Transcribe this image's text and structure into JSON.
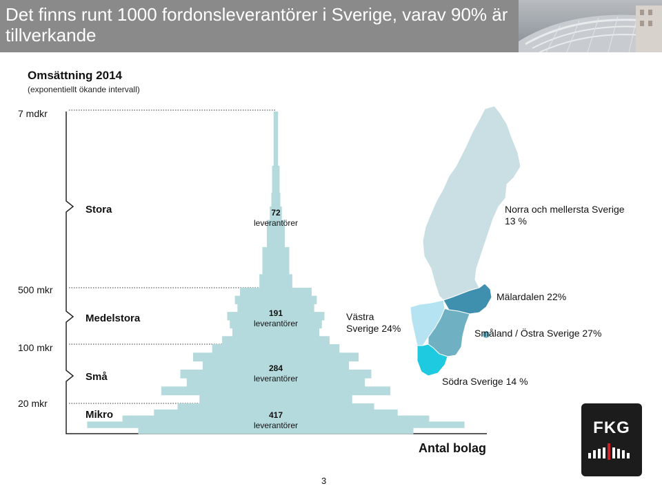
{
  "header": {
    "title": "Det finns runt 1000 fordonsleverantörer i Sverige, varav 90% är tillverkande",
    "bg_color": "#8a8a8a"
  },
  "chart_data": {
    "type": "bar",
    "title": "Omsättning 2014",
    "subtitle": "(exponentiellt ökande intervall)",
    "xlabel": "Antal bolag",
    "y_ticks": [
      "7 mdkr",
      "500 mkr",
      "100 mkr",
      "20 mkr"
    ],
    "bar_color": "#b4dadd",
    "categories": [
      "Stora",
      "Medelstora",
      "Små",
      "Mikro"
    ],
    "counts": [
      72,
      191,
      284,
      417
    ],
    "count_unit": "leverantörer",
    "count_labels": [
      "72",
      "191",
      "284",
      "417"
    ]
  },
  "map": {
    "regions": [
      {
        "name": "Norra och mellersta Sverige",
        "share": "13 %",
        "color": "#c9dfe4"
      },
      {
        "name": "Mälardalen",
        "share": "22%",
        "color": "#3f8fae"
      },
      {
        "name": "Västra",
        "name2": "Sverige",
        "share": "24%",
        "color": "#b5e3f2"
      },
      {
        "name": "Småland / Östra Sverige",
        "share": "27%",
        "color": "#6fb1c2"
      },
      {
        "name": "Södra Sverige",
        "share": "14 %",
        "color": "#1ecae0"
      }
    ],
    "labels": {
      "norra_line1": "Norra och mellersta Sverige",
      "norra_line2": "13 %",
      "malardalen": "Mälardalen 22%",
      "vastra_line1": "Västra",
      "vastra_line2": "Sverige 24%",
      "smaland": "Småland / Östra Sverige 27%",
      "sodra": "Södra Sverige 14 %"
    }
  },
  "footer": {
    "page_number": "3",
    "logo_text": "FKG"
  }
}
